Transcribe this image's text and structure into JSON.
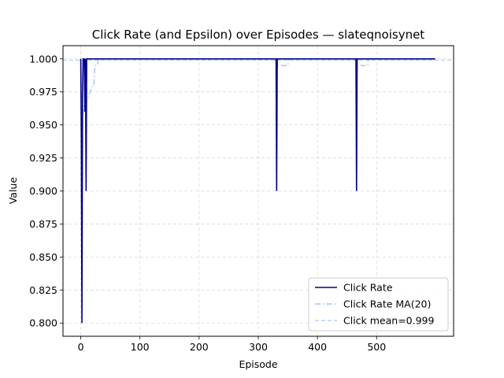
{
  "chart_data": {
    "type": "line",
    "title": "Click Rate (and Epsilon) over Episodes — slateqnoisynet",
    "xlabel": "Episode",
    "ylabel": "Value",
    "xlim": [
      -30,
      630
    ],
    "ylim": [
      0.79,
      1.01
    ],
    "xticks": [
      0,
      100,
      200,
      300,
      400,
      500
    ],
    "yticks": [
      0.8,
      0.825,
      0.85,
      0.875,
      0.9,
      0.925,
      0.95,
      0.975,
      1.0
    ],
    "ytick_labels": [
      "0.800",
      "0.825",
      "0.850",
      "0.875",
      "0.900",
      "0.925",
      "0.950",
      "0.975",
      "1.000"
    ],
    "grid": true,
    "legend_position": "lower-right",
    "series": [
      {
        "name": "Click Rate",
        "color": "#00008b",
        "style": "solid",
        "x": [
          0,
          1,
          2,
          3,
          4,
          5,
          6,
          7,
          8,
          9,
          10,
          11,
          12,
          13,
          330,
          331,
          332,
          333,
          465,
          466,
          467,
          468,
          599
        ],
        "y": [
          1.0,
          0.94,
          0.8,
          0.97,
          1.0,
          1.0,
          1.0,
          0.96,
          1.0,
          0.9,
          1.0,
          1.0,
          1.0,
          1.0,
          1.0,
          0.9,
          1.0,
          1.0,
          1.0,
          0.9,
          1.0,
          1.0,
          1.0
        ]
      },
      {
        "name": "Click Rate MA(20)",
        "color": "#a3c4f0",
        "style": "dashdot",
        "x": [
          0,
          1,
          2,
          3,
          4,
          6,
          8,
          9,
          10,
          12,
          14,
          16,
          18,
          20,
          22,
          24,
          28,
          30,
          331,
          332,
          350,
          351,
          466,
          467,
          485,
          486,
          599
        ],
        "y": [
          1.0,
          0.97,
          0.94,
          0.955,
          0.96,
          0.965,
          0.97,
          0.965,
          0.968,
          0.97,
          0.972,
          0.975,
          0.978,
          0.98,
          0.98,
          0.995,
          0.995,
          1.0,
          1.0,
          0.995,
          0.995,
          1.0,
          1.0,
          0.995,
          0.995,
          1.0,
          1.0
        ]
      },
      {
        "name": "Click mean=0.999",
        "color": "#b5d2f5",
        "style": "dashed",
        "x": [
          -30,
          630
        ],
        "y": [
          0.999,
          0.999
        ]
      }
    ]
  }
}
